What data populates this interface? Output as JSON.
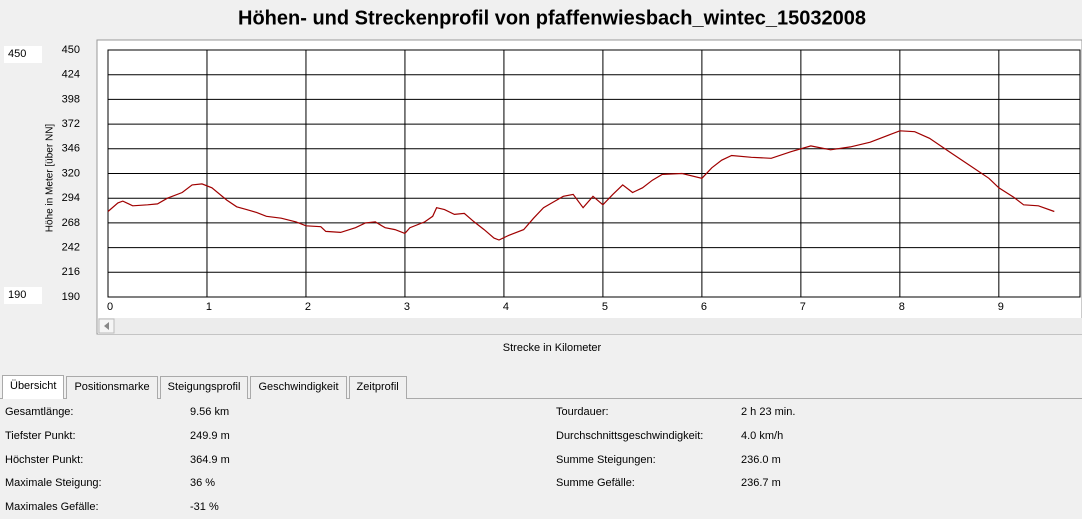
{
  "chart_data": {
    "type": "line",
    "title": "Höhen- und Streckenprofil von pfaffenwiesbach_wintec_15032008",
    "x_label": "Strecke in Kilometer",
    "y_label": "Höhe in Meter [über NN]",
    "x": [
      0,
      0.1,
      0.15,
      0.25,
      0.4,
      0.5,
      0.6,
      0.75,
      0.85,
      0.95,
      1.05,
      1.2,
      1.3,
      1.4,
      1.5,
      1.6,
      1.75,
      1.9,
      2.0,
      2.15,
      2.2,
      2.35,
      2.5,
      2.6,
      2.7,
      2.8,
      2.9,
      3.0,
      3.05,
      3.2,
      3.28,
      3.32,
      3.4,
      3.5,
      3.6,
      3.7,
      3.8,
      3.9,
      3.95,
      4.05,
      4.2,
      4.3,
      4.4,
      4.5,
      4.6,
      4.7,
      4.8,
      4.9,
      5.0,
      5.1,
      5.2,
      5.3,
      5.4,
      5.5,
      5.6,
      5.8,
      6.0,
      6.1,
      6.2,
      6.3,
      6.5,
      6.7,
      6.9,
      7.1,
      7.2,
      7.3,
      7.5,
      7.7,
      7.9,
      8.0,
      8.15,
      8.3,
      8.5,
      8.7,
      8.9,
      9.0,
      9.15,
      9.25,
      9.4,
      9.56
    ],
    "series": [
      {
        "color": "#a00000",
        "values": [
          280,
          289,
          291,
          286,
          287,
          288,
          294,
          300,
          308,
          309,
          305,
          292,
          285,
          282,
          279,
          275,
          273,
          269,
          265,
          264,
          259,
          258,
          263,
          268,
          269,
          263,
          261,
          257,
          263,
          269,
          275,
          284,
          282,
          277,
          278,
          269,
          261,
          252,
          250,
          255,
          261,
          273,
          284,
          290,
          296,
          298,
          284,
          296,
          287,
          298,
          308,
          300,
          305,
          313,
          319,
          320,
          315,
          326,
          334,
          339,
          337,
          336,
          343,
          349,
          347,
          345,
          348,
          353,
          361,
          365,
          364,
          357,
          343,
          329,
          315,
          305,
          295,
          287,
          286,
          280
        ]
      }
    ],
    "xlim": [
      0,
      9.82
    ],
    "ylim": [
      190,
      450
    ],
    "xticks": [
      0,
      1,
      2,
      3,
      4,
      5,
      6,
      7,
      8,
      9
    ],
    "yticks": [
      190,
      216,
      242,
      268,
      294,
      320,
      346,
      372,
      398,
      424,
      450
    ],
    "grid": true
  },
  "range_inputs": {
    "max": "450",
    "min": "190"
  },
  "tabs": [
    "Übersicht",
    "Positionsmarke",
    "Steigungsprofil",
    "Geschwindigkeit",
    "Zeitprofil"
  ],
  "stats": {
    "left": [
      [
        "Gesamtlänge:",
        "9.56 km"
      ],
      [
        "Tiefster Punkt:",
        "249.9 m"
      ],
      [
        "Höchster Punkt:",
        "364.9 m"
      ],
      [
        "Maximale Steigung:",
        "36 %"
      ],
      [
        "Maximales Gefälle:",
        "-31 %"
      ]
    ],
    "right": [
      [
        "Tourdauer:",
        "2 h 23 min."
      ],
      [
        "Durchschnittsgeschwindigkeit:",
        "4.0 km/h"
      ],
      [
        "Summe Steigungen:",
        "236.0 m"
      ],
      [
        "Summe Gefälle:",
        "236.7 m"
      ]
    ]
  }
}
